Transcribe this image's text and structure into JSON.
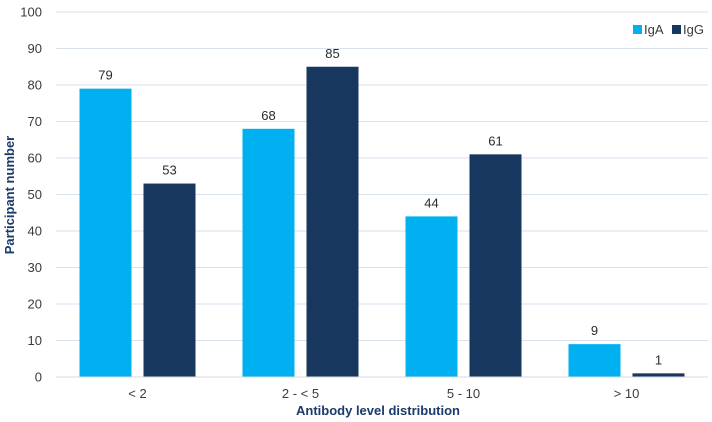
{
  "chart_data": {
    "type": "bar",
    "categories": [
      "< 2",
      "2 - < 5",
      "5 - 10",
      "> 10"
    ],
    "series": [
      {
        "name": "IgA",
        "values": [
          79,
          68,
          44,
          9
        ],
        "color": "#00b0f0"
      },
      {
        "name": "IgG",
        "values": [
          53,
          85,
          61,
          1
        ],
        "color": "#17375e"
      }
    ],
    "title": "",
    "xlabel": "Antibody level distribution",
    "ylabel": "Participant number",
    "ylim": [
      0,
      100
    ],
    "yticks": [
      0,
      10,
      20,
      30,
      40,
      50,
      60,
      70,
      80,
      90,
      100
    ],
    "grid": true,
    "legend": "top-right"
  }
}
